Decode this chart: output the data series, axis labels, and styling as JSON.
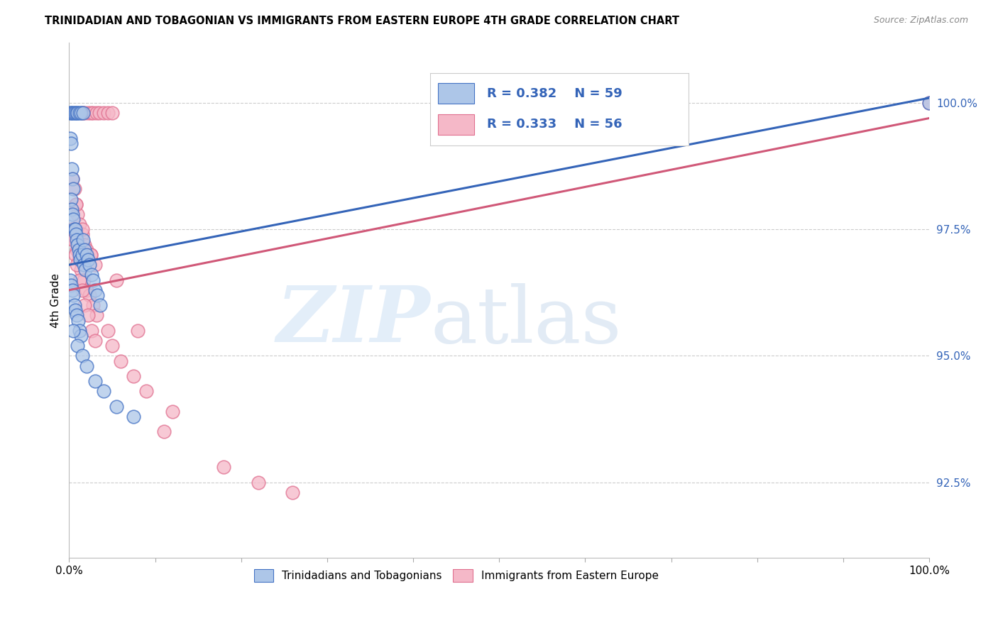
{
  "title": "TRINIDADIAN AND TOBAGONIAN VS IMMIGRANTS FROM EASTERN EUROPE 4TH GRADE CORRELATION CHART",
  "source": "Source: ZipAtlas.com",
  "ylabel": "4th Grade",
  "right_ytick_labels": [
    "100.0%",
    "97.5%",
    "95.0%",
    "92.5%"
  ],
  "right_ytick_values": [
    100.0,
    97.5,
    95.0,
    92.5
  ],
  "legend_r1": "R = 0.382",
  "legend_n1": "N = 59",
  "legend_r2": "R = 0.333",
  "legend_n2": "N = 56",
  "blue_fill": "#adc6e8",
  "pink_fill": "#f5b8c8",
  "blue_edge": "#4472c4",
  "pink_edge": "#e07090",
  "blue_line": "#3464b8",
  "pink_line": "#d05878",
  "legend_color": "#3464b8",
  "grid_color": "#cccccc",
  "bg_color": "#ffffff",
  "xmin": 0,
  "xmax": 100,
  "ymin": 91.0,
  "ymax": 101.2,
  "blue_x": [
    0.15,
    0.25,
    0.4,
    0.55,
    0.7,
    0.85,
    1.0,
    1.2,
    1.4,
    1.6,
    0.1,
    0.2,
    0.3,
    0.4,
    0.5,
    0.2,
    0.3,
    0.4,
    0.5,
    0.6,
    0.7,
    0.8,
    0.9,
    1.0,
    1.1,
    1.2,
    1.3,
    1.5,
    1.7,
    1.9,
    0.15,
    0.25,
    0.35,
    0.45,
    0.6,
    0.75,
    0.9,
    1.05,
    1.2,
    1.4,
    1.6,
    1.8,
    2.0,
    2.2,
    2.4,
    2.6,
    2.8,
    3.0,
    3.3,
    3.6,
    0.5,
    1.0,
    1.5,
    2.0,
    3.0,
    4.0,
    5.5,
    7.5,
    100.0
  ],
  "blue_y": [
    99.8,
    99.8,
    99.8,
    99.8,
    99.8,
    99.8,
    99.8,
    99.8,
    99.8,
    99.8,
    99.3,
    99.2,
    98.7,
    98.5,
    98.3,
    98.1,
    97.9,
    97.8,
    97.7,
    97.5,
    97.5,
    97.4,
    97.3,
    97.2,
    97.1,
    97.0,
    96.9,
    97.0,
    96.8,
    96.7,
    96.5,
    96.4,
    96.3,
    96.2,
    96.0,
    95.9,
    95.8,
    95.7,
    95.5,
    95.4,
    97.3,
    97.1,
    97.0,
    96.9,
    96.8,
    96.6,
    96.5,
    96.3,
    96.2,
    96.0,
    95.5,
    95.2,
    95.0,
    94.8,
    94.5,
    94.3,
    94.0,
    93.8,
    100.0
  ],
  "pink_x": [
    1.5,
    1.8,
    2.2,
    2.5,
    2.8,
    3.2,
    3.5,
    4.0,
    4.5,
    5.0,
    0.4,
    0.6,
    0.8,
    1.0,
    1.2,
    1.5,
    1.8,
    2.0,
    2.5,
    3.0,
    0.5,
    0.7,
    0.9,
    1.1,
    1.4,
    1.7,
    2.0,
    2.4,
    2.8,
    3.2,
    0.3,
    0.5,
    0.7,
    0.9,
    1.2,
    1.5,
    1.8,
    2.2,
    2.6,
    3.0,
    4.5,
    5.0,
    6.0,
    7.5,
    9.0,
    12.0,
    18.0,
    22.0,
    26.0,
    5.5,
    8.0,
    11.0,
    0.8,
    1.5,
    2.5,
    100.0
  ],
  "pink_y": [
    99.8,
    99.8,
    99.8,
    99.8,
    99.8,
    99.8,
    99.8,
    99.8,
    99.8,
    99.8,
    98.5,
    98.3,
    98.0,
    97.8,
    97.6,
    97.4,
    97.2,
    97.1,
    97.0,
    96.8,
    97.5,
    97.3,
    97.1,
    96.9,
    96.7,
    96.5,
    96.3,
    96.2,
    96.0,
    95.8,
    97.5,
    97.3,
    97.0,
    96.8,
    96.5,
    96.3,
    96.0,
    95.8,
    95.5,
    95.3,
    95.5,
    95.2,
    94.9,
    94.6,
    94.3,
    93.9,
    92.8,
    92.5,
    92.3,
    96.5,
    95.5,
    93.5,
    98.0,
    97.5,
    97.0,
    100.0
  ],
  "blue_line_x": [
    0,
    100
  ],
  "blue_line_y": [
    96.8,
    100.1
  ],
  "pink_line_x": [
    0,
    100
  ],
  "pink_line_y": [
    96.3,
    99.7
  ]
}
